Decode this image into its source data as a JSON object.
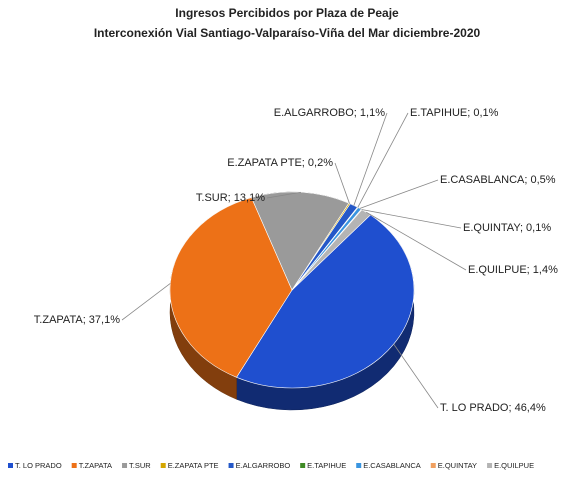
{
  "chart_data": {
    "type": "pie",
    "title": "Ingresos Percibidos por Plaza de Peaje",
    "subtitle": "Interconexión Vial Santiago-Valparaíso-Viña  del Mar diciembre-2020",
    "categories": [
      "T. LO PRADO",
      "T.ZAPATA",
      "T.SUR",
      "E.ZAPATA PTE",
      "E.ALGARROBO",
      "E.TAPIHUE",
      "E.CASABLANCA",
      "E.QUINTAY",
      "E.QUILPUE"
    ],
    "values": [
      46.4,
      37.1,
      13.1,
      0.2,
      1.1,
      0.1,
      0.5,
      0.1,
      1.4
    ],
    "value_labels": [
      "T. LO PRADO; 46,4%",
      "T.ZAPATA; 37,1%",
      "T.SUR; 13,1%",
      "E.ZAPATA PTE; 0,2%",
      "E.ALGARROBO; 1,1%",
      "E.TAPIHUE; 0,1%",
      "E.CASABLANCA; 0,5%",
      "E.QUINTAY; 0,1%",
      "E.QUILPUE; 1,4%"
    ],
    "colors": [
      "#1f4fcf",
      "#ed7117",
      "#9a9a9a",
      "#d4a600",
      "#2458c8",
      "#3f8a25",
      "#3a95e0",
      "#f0a060",
      "#b4b4b4"
    ],
    "legend": "bottom"
  }
}
